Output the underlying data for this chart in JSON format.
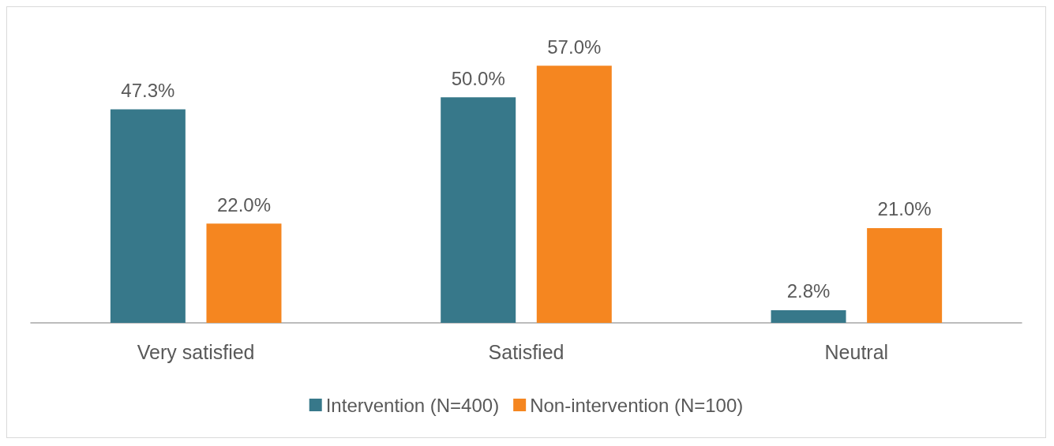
{
  "chart_data": {
    "type": "bar",
    "categories": [
      "Very satisfied",
      "Satisfied",
      "Neutral"
    ],
    "series": [
      {
        "name": "Intervention (N=400)",
        "color": "#37788a",
        "values": [
          47.3,
          50.0,
          2.8
        ],
        "value_labels": [
          "47.3%",
          "50.0%",
          "2.8%"
        ]
      },
      {
        "name": "Non-intervention (N=100)",
        "color": "#f58620",
        "values": [
          22.0,
          57.0,
          21.0
        ],
        "value_labels": [
          "22.0%",
          "57.0%",
          "21.0%"
        ]
      }
    ],
    "tick_labels": "x",
    "grid": false,
    "legend": "bottom"
  }
}
